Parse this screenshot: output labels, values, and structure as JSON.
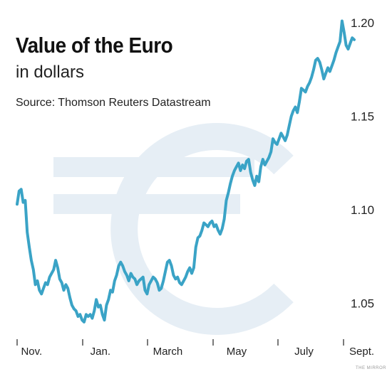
{
  "chart_data": {
    "type": "line",
    "title": "Value of the Euro",
    "subtitle": "in dollars",
    "source": "Source: Thomson Reuters Datastream",
    "credit": "THE MIRROR",
    "xlabel": "",
    "ylabel": "",
    "ylim": [
      1.035,
      1.205
    ],
    "yticks": [
      {
        "value": 1.2,
        "label": "1.20"
      },
      {
        "value": 1.15,
        "label": "1.15"
      },
      {
        "value": 1.1,
        "label": "1.10"
      },
      {
        "value": 1.05,
        "label": "1.05"
      }
    ],
    "xticks": [
      {
        "label": "Nov.",
        "t": 0.043
      },
      {
        "label": "Jan.",
        "t": 0.247
      },
      {
        "label": "March",
        "t": 0.447
      },
      {
        "label": "May",
        "t": 0.651
      },
      {
        "label": "July",
        "t": 0.851
      },
      {
        "label": "Sept.",
        "t": 1.053
      }
    ],
    "grid": false,
    "legend": "none",
    "colors": {
      "line": "#3aa3c6",
      "watermark": "#e6eef5"
    },
    "series": [
      {
        "values": [
          1.103,
          1.11,
          1.111,
          1.104,
          1.105,
          1.088,
          1.08,
          1.073,
          1.068,
          1.06,
          1.062,
          1.057,
          1.055,
          1.058,
          1.061,
          1.06,
          1.064,
          1.066,
          1.068,
          1.073,
          1.069,
          1.063,
          1.061,
          1.057,
          1.06,
          1.058,
          1.053,
          1.049,
          1.047,
          1.046,
          1.043,
          1.044,
          1.041,
          1.04,
          1.044,
          1.043,
          1.044,
          1.042,
          1.046,
          1.052,
          1.048,
          1.049,
          1.044,
          1.041,
          1.049,
          1.052,
          1.057,
          1.056,
          1.062,
          1.065,
          1.07,
          1.072,
          1.07,
          1.067,
          1.065,
          1.062,
          1.066,
          1.064,
          1.063,
          1.06,
          1.062,
          1.063,
          1.064,
          1.057,
          1.055,
          1.06,
          1.062,
          1.064,
          1.063,
          1.061,
          1.057,
          1.058,
          1.062,
          1.067,
          1.072,
          1.073,
          1.07,
          1.065,
          1.063,
          1.064,
          1.061,
          1.06,
          1.062,
          1.064,
          1.067,
          1.069,
          1.066,
          1.069,
          1.08,
          1.085,
          1.086,
          1.089,
          1.093,
          1.092,
          1.091,
          1.093,
          1.094,
          1.091,
          1.092,
          1.089,
          1.087,
          1.09,
          1.095,
          1.105,
          1.109,
          1.114,
          1.118,
          1.121,
          1.123,
          1.125,
          1.121,
          1.124,
          1.122,
          1.126,
          1.127,
          1.12,
          1.116,
          1.113,
          1.118,
          1.115,
          1.123,
          1.127,
          1.124,
          1.126,
          1.128,
          1.131,
          1.138,
          1.136,
          1.135,
          1.138,
          1.141,
          1.139,
          1.137,
          1.14,
          1.145,
          1.15,
          1.153,
          1.155,
          1.152,
          1.158,
          1.165,
          1.164,
          1.163,
          1.166,
          1.168,
          1.171,
          1.175,
          1.18,
          1.181,
          1.179,
          1.175,
          1.17,
          1.173,
          1.176,
          1.174,
          1.177,
          1.18,
          1.184,
          1.187,
          1.19,
          1.201,
          1.195,
          1.188,
          1.186,
          1.189,
          1.192,
          1.191
        ]
      }
    ]
  }
}
